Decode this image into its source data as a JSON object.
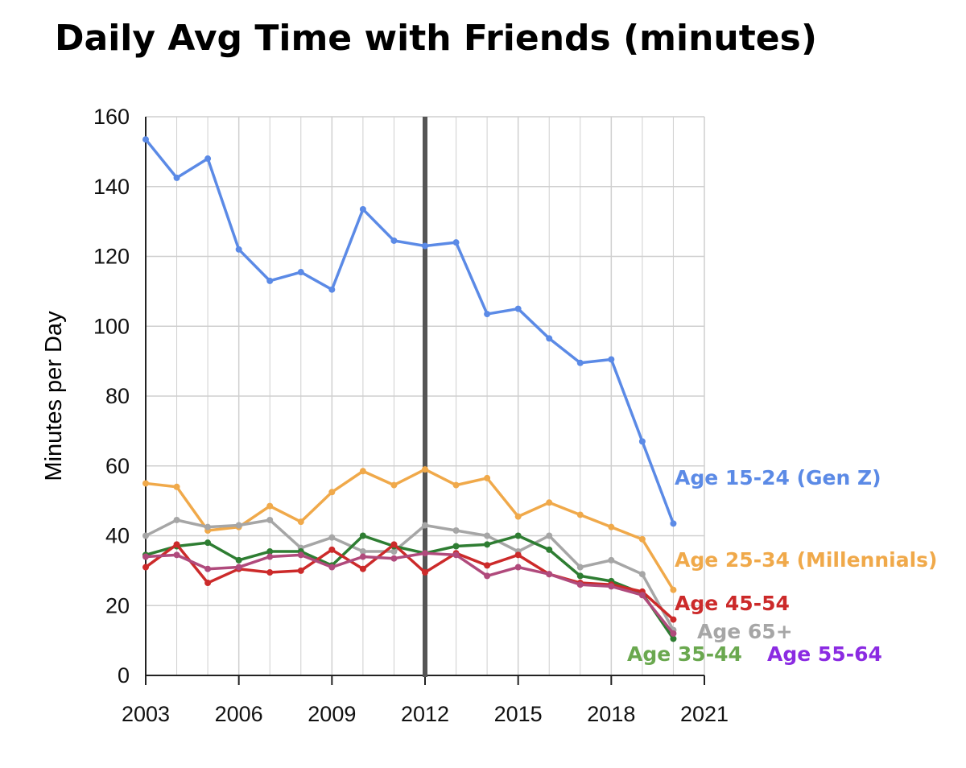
{
  "chart_data": {
    "type": "line",
    "title": "Daily Avg Time with Friends (minutes)",
    "xlabel": "",
    "ylabel": "Minutes per Day",
    "xlim": [
      2003,
      2021
    ],
    "ylim": [
      0,
      160
    ],
    "x_ticks": [
      "2003",
      "2006",
      "2009",
      "2012",
      "2015",
      "2018",
      "2021"
    ],
    "y_ticks": [
      "0",
      "20",
      "40",
      "60",
      "80",
      "100",
      "120",
      "140",
      "160"
    ],
    "grid": true,
    "vertical_marker_x": 2012,
    "x": [
      2003,
      2004,
      2005,
      2006,
      2007,
      2008,
      2009,
      2010,
      2011,
      2012,
      2013,
      2014,
      2015,
      2016,
      2017,
      2018,
      2019,
      2020
    ],
    "series": [
      {
        "name": "Age 15-24 (Gen Z)",
        "color": "#5b8ae6",
        "values": [
          153.5,
          142.5,
          148,
          122,
          113,
          115.5,
          110.5,
          133.5,
          124.5,
          123,
          124,
          103.5,
          105,
          96.5,
          89.5,
          90.5,
          67,
          43.5
        ]
      },
      {
        "name": "Age 25-34 (Millennials)",
        "color": "#f0a94a",
        "values": [
          55,
          54,
          41.5,
          42.5,
          48.5,
          44,
          52.5,
          58.5,
          54.5,
          59,
          54.5,
          56.5,
          45.5,
          49.5,
          46,
          42.5,
          39,
          24.5
        ]
      },
      {
        "name": "Age 65+",
        "color": "#a6a6a6",
        "values": [
          40,
          44.5,
          42.5,
          43,
          44.5,
          36.5,
          39.5,
          35.5,
          35.5,
          43,
          41.5,
          40,
          35.5,
          40,
          31,
          33,
          29,
          13
        ]
      },
      {
        "name": "Age 35-44",
        "color": "#2e7d32",
        "values": [
          34.5,
          37,
          38,
          33,
          35.5,
          35.5,
          31.5,
          40,
          37,
          35,
          37,
          37.5,
          40,
          36,
          28.5,
          27,
          23.5,
          10.5
        ]
      },
      {
        "name": "Age 45-54",
        "color": "#cc2a2a",
        "values": [
          31,
          37.5,
          26.5,
          30.5,
          29.5,
          30,
          36,
          30.5,
          37.5,
          29.5,
          35,
          31.5,
          34.5,
          29,
          26.5,
          26,
          24,
          16
        ]
      },
      {
        "name": "Age 55-64",
        "color": "#b04a7c",
        "values": [
          34,
          34.5,
          30.5,
          31,
          34,
          34.5,
          31,
          34,
          33.5,
          35,
          34.5,
          28.5,
          31,
          29,
          26,
          25.5,
          23,
          12
        ]
      }
    ],
    "labels": [
      {
        "text": "Age 15-24 (Gen Z)",
        "color": "#5b8ae6"
      },
      {
        "text": "Age 25-34 (Millennials)",
        "color": "#f0a94a"
      },
      {
        "text": "Age 45-54",
        "color": "#cc2a2a"
      },
      {
        "text": "Age 65+",
        "color": "#a6a6a6"
      },
      {
        "text": "Age 35-44",
        "color": "#6aa84f"
      },
      {
        "text": "Age 55-64",
        "color": "#8b2be2"
      }
    ]
  }
}
